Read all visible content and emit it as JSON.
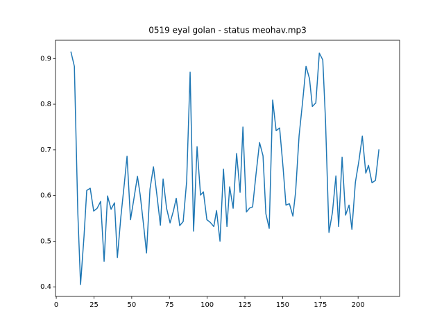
{
  "chart_data": {
    "type": "line",
    "title": "0519 eyal golan - status meohav.mp3",
    "x": [
      9.7,
      12,
      14.3,
      16.1,
      18.4,
      20.2,
      22.5,
      24.8,
      27.1,
      29.4,
      31.7,
      34,
      36.3,
      38.6,
      40.5,
      42.8,
      45.1,
      46.9,
      49.2,
      51.5,
      53.8,
      55.6,
      57.9,
      59.8,
      62.1,
      64.4,
      66.7,
      69,
      70.8,
      73.1,
      75.4,
      77.7,
      79.5,
      81.8,
      84.1,
      86.4,
      88.7,
      91,
      93.3,
      95.6,
      97.5,
      99.8,
      102.1,
      104.4,
      106.2,
      108.5,
      110.8,
      113.1,
      114.9,
      117.2,
      119.5,
      121.8,
      123.7,
      126,
      128.3,
      130.1,
      132.4,
      134.7,
      137,
      138.9,
      141.1,
      143.4,
      145.7,
      148,
      150.3,
      152.2,
      154.5,
      156.8,
      158.6,
      160.9,
      163.2,
      165.5,
      167.8,
      169.7,
      172,
      174.3,
      176.6,
      178.4,
      180.7,
      183,
      185.3,
      187.1,
      189.4,
      191.7,
      194,
      195.9,
      198.2,
      200.5,
      202.8,
      205.1,
      206.9,
      209.2,
      211.5,
      213.8
    ],
    "values": [
      0.915,
      0.883,
      0.561,
      0.405,
      0.511,
      0.611,
      0.616,
      0.566,
      0.572,
      0.587,
      0.456,
      0.599,
      0.57,
      0.584,
      0.464,
      0.553,
      0.626,
      0.686,
      0.547,
      0.594,
      0.642,
      0.602,
      0.534,
      0.474,
      0.614,
      0.663,
      0.601,
      0.535,
      0.636,
      0.572,
      0.54,
      0.567,
      0.594,
      0.534,
      0.543,
      0.631,
      0.87,
      0.522,
      0.707,
      0.601,
      0.608,
      0.547,
      0.541,
      0.532,
      0.567,
      0.5,
      0.658,
      0.532,
      0.619,
      0.572,
      0.692,
      0.607,
      0.75,
      0.564,
      0.573,
      0.575,
      0.648,
      0.716,
      0.687,
      0.56,
      0.528,
      0.809,
      0.742,
      0.748,
      0.661,
      0.579,
      0.582,
      0.555,
      0.608,
      0.731,
      0.804,
      0.883,
      0.856,
      0.795,
      0.803,
      0.912,
      0.897,
      0.765,
      0.519,
      0.563,
      0.643,
      0.532,
      0.684,
      0.557,
      0.579,
      0.526,
      0.629,
      0.675,
      0.73,
      0.649,
      0.666,
      0.628,
      0.633,
      0.701
    ],
    "color": "#1f77b4",
    "xlim": [
      -0.5,
      227.5
    ],
    "xticks": [
      0,
      25,
      50,
      75,
      100,
      125,
      150,
      175,
      200
    ],
    "ylim": [
      0.379,
      0.94
    ],
    "yticks": [
      0.4,
      0.5,
      0.6,
      0.7,
      0.8,
      0.9
    ]
  }
}
